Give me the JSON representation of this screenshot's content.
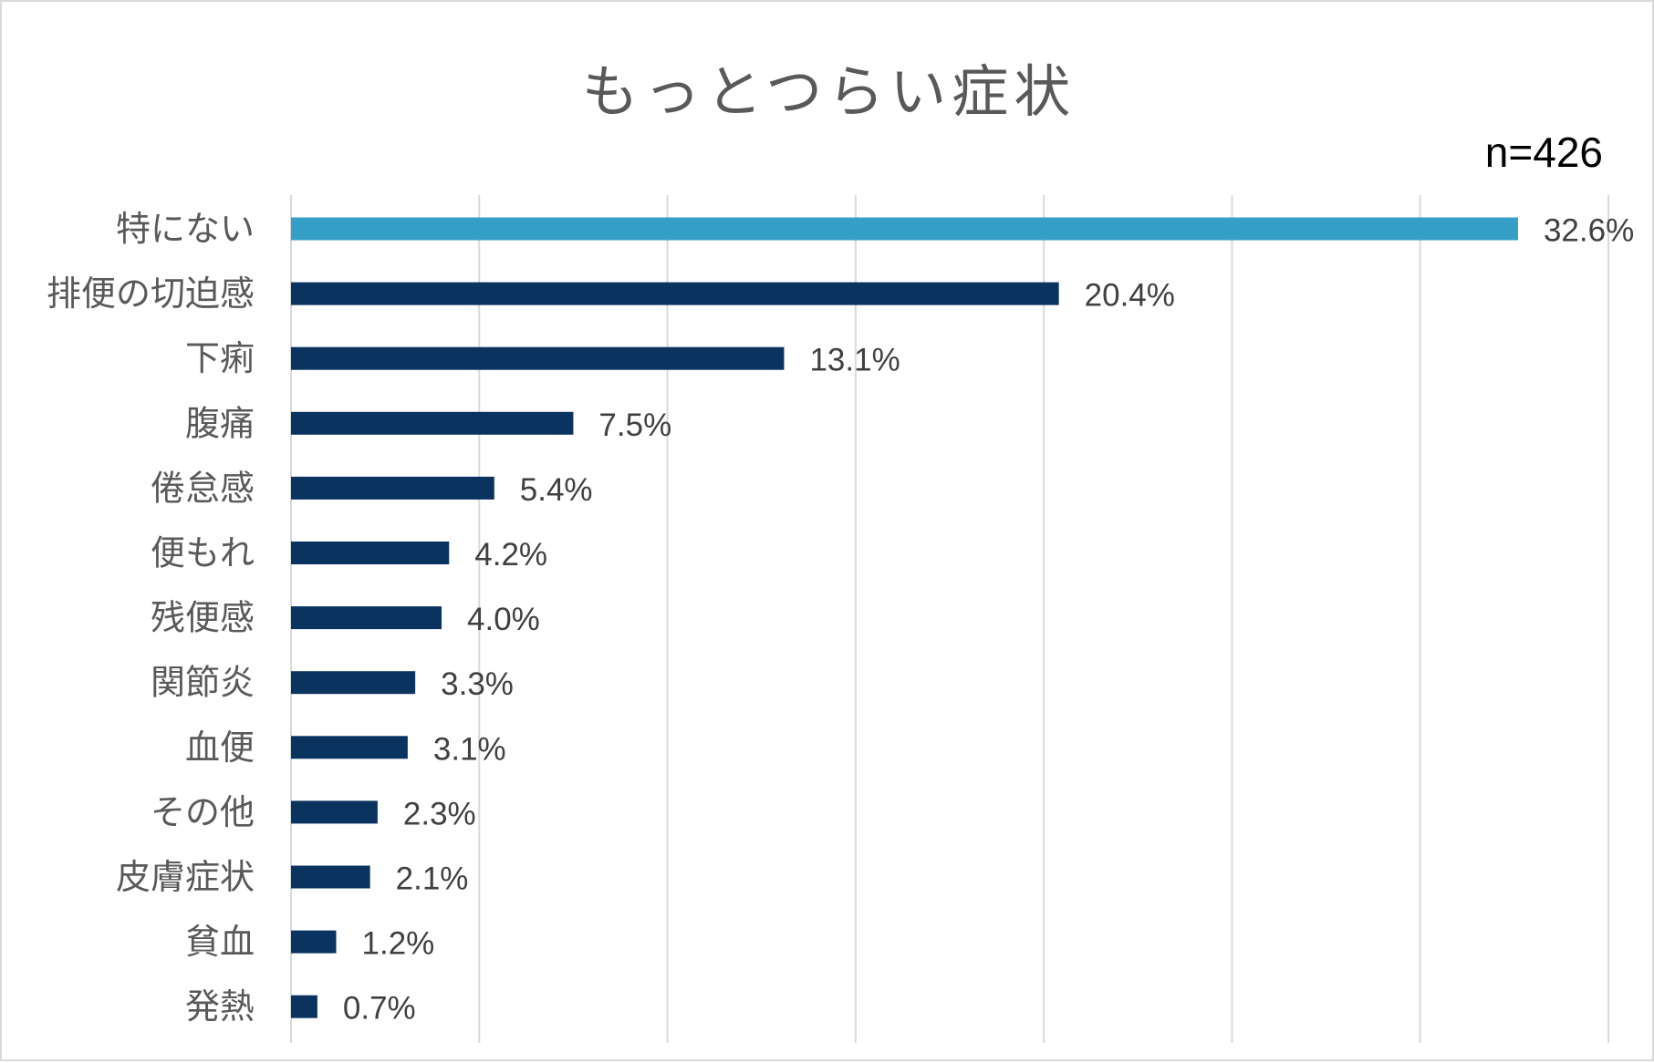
{
  "chart_data": {
    "type": "bar",
    "orientation": "horizontal",
    "title": "もっとつらい症状",
    "note": "n=426",
    "categories": [
      "特にない",
      "排便の切迫感",
      "下痢",
      "腹痛",
      "倦怠感",
      "便もれ",
      "残便感",
      "関節炎",
      "血便",
      "その他",
      "皮膚症状",
      "貧血",
      "発熱"
    ],
    "values": [
      32.6,
      20.4,
      13.1,
      7.5,
      5.4,
      4.2,
      4.0,
      3.3,
      3.1,
      2.3,
      2.1,
      1.2,
      0.7
    ],
    "value_labels": [
      "32.6%",
      "20.4%",
      "13.1%",
      "7.5%",
      "5.4%",
      "4.2%",
      "4.0%",
      "3.3%",
      "3.1%",
      "2.3%",
      "2.1%",
      "1.2%",
      "0.7%"
    ],
    "xlim": [
      0,
      35
    ],
    "grid": true,
    "axis_ticks_shown": false,
    "legend": "none",
    "colors": {
      "highlight": "#369fc8",
      "bar": "#0b3360",
      "grid": "#d9d9d9",
      "text": "#595959"
    },
    "highlight_index": 0
  }
}
